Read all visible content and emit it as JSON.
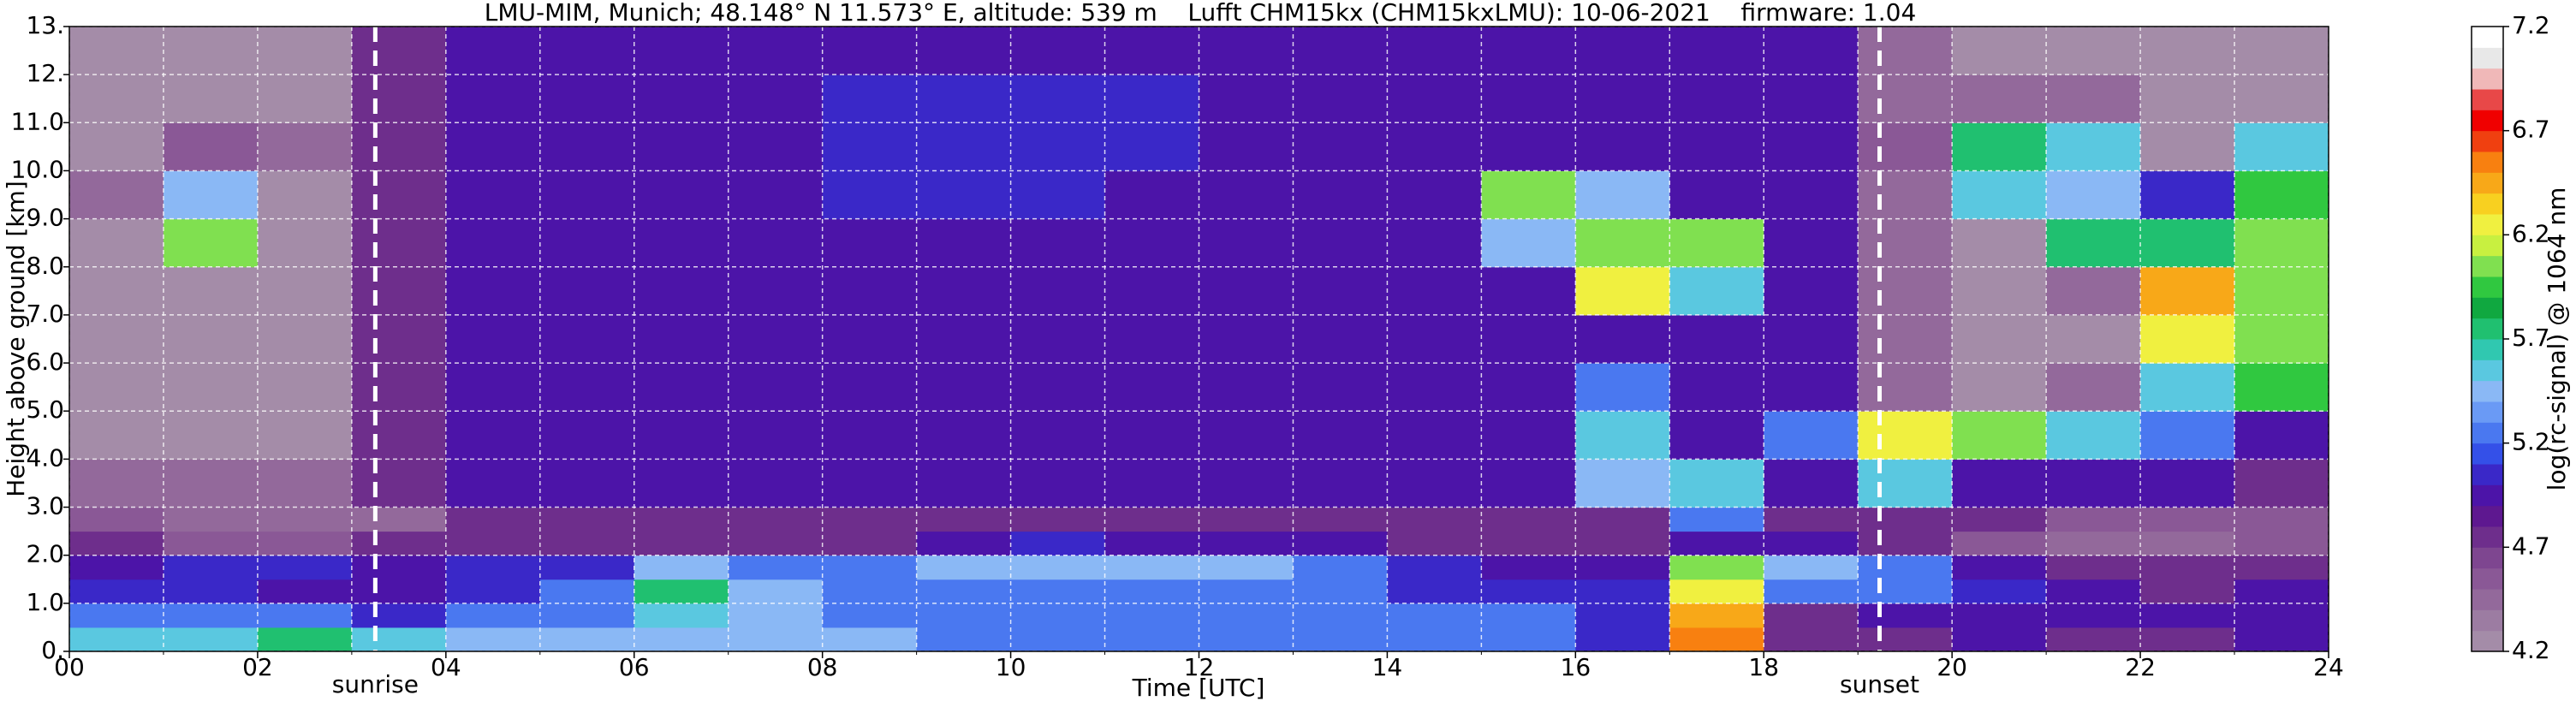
{
  "chart_data": {
    "type": "heatmap",
    "title": "LMU-MIM, Munich; 48.148° N 11.573° E, altitude: 539 m    Lufft CHM15kx (CHM15kxLMU): 10-06-2021    firmware: 1.04",
    "xlabel": "Time [UTC]",
    "ylabel": "Height above ground [km]",
    "colorbar_label": "log(rc-signal) @ 1064 nm",
    "xlim": [
      0,
      24
    ],
    "ylim": [
      0,
      13
    ],
    "xticks": [
      {
        "value": 0,
        "label": "00"
      },
      {
        "value": 2,
        "label": "02"
      },
      {
        "value": 4,
        "label": "04"
      },
      {
        "value": 6,
        "label": "06"
      },
      {
        "value": 8,
        "label": "08"
      },
      {
        "value": 10,
        "label": "10"
      },
      {
        "value": 12,
        "label": "12"
      },
      {
        "value": 14,
        "label": "14"
      },
      {
        "value": 16,
        "label": "16"
      },
      {
        "value": 18,
        "label": "18"
      },
      {
        "value": 20,
        "label": "20"
      },
      {
        "value": 22,
        "label": "22"
      },
      {
        "value": 24,
        "label": "24"
      }
    ],
    "xminorticks": [
      1,
      3,
      5,
      7,
      9,
      11,
      13,
      15,
      17,
      19,
      21,
      23
    ],
    "yticks": [
      {
        "value": 0,
        "label": "0."
      },
      {
        "value": 1,
        "label": "1.0"
      },
      {
        "value": 2,
        "label": "2.0"
      },
      {
        "value": 3,
        "label": "3.0"
      },
      {
        "value": 4,
        "label": "4.0"
      },
      {
        "value": 5,
        "label": "5.0"
      },
      {
        "value": 6,
        "label": "6.0"
      },
      {
        "value": 7,
        "label": "7.0"
      },
      {
        "value": 8,
        "label": "8.0"
      },
      {
        "value": 9,
        "label": "9.0"
      },
      {
        "value": 10,
        "label": "10.0"
      },
      {
        "value": 11,
        "label": "11.0"
      },
      {
        "value": 12,
        "label": "12."
      },
      {
        "value": 13,
        "label": "13."
      }
    ],
    "grid": true,
    "annotations": [
      {
        "text": "sunrise",
        "x": 3.25
      },
      {
        "text": "sunset",
        "x": 19.23
      }
    ],
    "clim": [
      4.2,
      7.2
    ],
    "cticks": [
      4.2,
      4.7,
      5.2,
      5.7,
      6.2,
      6.7,
      7.2
    ],
    "colors": [
      "#a48ca8",
      "#9c7ca2",
      "#93699b",
      "#8a5896",
      "#7e4690",
      "#6e2e8c",
      "#5e1890",
      "#4c14a8",
      "#3a28c8",
      "#3450e8",
      "#4a78f0",
      "#6a9af5",
      "#8ab8f5",
      "#5ac8e0",
      "#30c8b0",
      "#20c070",
      "#10a840",
      "#30c840",
      "#80e050",
      "#c8f040",
      "#f0f040",
      "#f8d020",
      "#f8a818",
      "#f88010",
      "#f04010",
      "#f00000",
      "#e84848",
      "#f0b8b8",
      "#e8e8e8",
      "#ffffff"
    ],
    "x_bins": [
      0,
      1,
      2,
      3,
      4,
      5,
      6,
      7,
      8,
      9,
      10,
      11,
      12,
      13,
      14,
      15,
      16,
      17,
      18,
      19,
      20,
      21,
      22,
      23,
      24
    ],
    "y_bins": [
      0,
      0.5,
      1,
      1.5,
      2,
      2.5,
      3,
      4,
      5,
      6,
      7,
      8,
      9,
      10,
      11,
      12,
      13
    ],
    "z": [
      [
        5.6,
        5.6,
        5.7,
        5.6,
        5.5,
        5.4,
        5.5,
        5.5,
        5.4,
        5.2,
        5.2,
        5.2,
        5.2,
        5.2,
        5.2,
        5.2,
        5.1,
        6.5,
        4.8,
        4.8,
        4.9,
        4.8,
        4.8,
        4.9
      ],
      [
        5.3,
        5.3,
        5.2,
        5.1,
        5.2,
        5.3,
        5.6,
        5.4,
        5.3,
        5.2,
        5.2,
        5.2,
        5.2,
        5.2,
        5.2,
        5.2,
        5.1,
        6.4,
        4.8,
        4.9,
        5.0,
        4.9,
        4.9,
        5.0
      ],
      [
        5.1,
        5.1,
        5.0,
        5.0,
        5.1,
        5.2,
        5.7,
        5.5,
        5.3,
        5.2,
        5.2,
        5.2,
        5.2,
        5.2,
        5.1,
        5.1,
        5.1,
        6.2,
        5.2,
        5.2,
        5.1,
        4.9,
        4.8,
        4.9
      ],
      [
        5.0,
        5.1,
        5.1,
        5.0,
        5.1,
        5.1,
        5.5,
        5.3,
        5.2,
        5.4,
        5.5,
        5.5,
        5.5,
        5.3,
        5.1,
        5.0,
        5.0,
        6.0,
        5.4,
        5.2,
        5.0,
        4.8,
        4.7,
        4.8
      ],
      [
        4.7,
        4.6,
        4.6,
        4.7,
        4.8,
        4.8,
        4.8,
        4.8,
        4.8,
        5.0,
        5.1,
        5.0,
        5.0,
        4.9,
        4.8,
        4.8,
        4.8,
        5.0,
        4.9,
        4.8,
        4.6,
        4.5,
        4.5,
        4.6
      ],
      [
        4.6,
        4.5,
        4.5,
        4.5,
        4.8,
        4.8,
        4.8,
        4.8,
        4.8,
        4.8,
        4.8,
        4.8,
        4.8,
        4.8,
        4.8,
        4.8,
        4.8,
        5.2,
        4.8,
        4.7,
        4.7,
        4.6,
        4.6,
        4.6
      ],
      [
        4.4,
        4.4,
        4.4,
        4.7,
        4.9,
        4.9,
        4.9,
        4.9,
        4.9,
        4.9,
        4.9,
        4.9,
        4.9,
        4.9,
        4.9,
        4.9,
        5.4,
        5.6,
        4.9,
        5.6,
        5.0,
        4.9,
        4.9,
        4.8
      ],
      [
        4.3,
        4.3,
        4.3,
        4.8,
        4.9,
        4.9,
        4.9,
        4.9,
        4.9,
        4.9,
        4.9,
        4.9,
        4.9,
        4.9,
        4.9,
        4.9,
        5.6,
        4.9,
        5.3,
        6.2,
        6.1,
        5.6,
        5.3,
        5.0
      ],
      [
        4.3,
        4.3,
        4.3,
        4.8,
        4.9,
        4.9,
        4.9,
        4.9,
        4.9,
        4.9,
        4.9,
        4.9,
        4.9,
        4.9,
        4.9,
        4.9,
        5.2,
        4.9,
        4.9,
        4.5,
        4.3,
        4.4,
        5.6,
        5.9
      ],
      [
        4.3,
        4.3,
        4.3,
        4.8,
        5.0,
        4.9,
        4.9,
        4.9,
        4.9,
        5.0,
        4.9,
        4.9,
        4.9,
        4.9,
        4.9,
        4.9,
        4.9,
        4.9,
        4.9,
        4.4,
        4.3,
        4.3,
        6.3,
        6.0
      ],
      [
        4.3,
        4.3,
        4.3,
        4.8,
        4.9,
        4.9,
        4.9,
        4.9,
        5.0,
        5.0,
        5.0,
        5.0,
        4.9,
        4.9,
        4.9,
        4.9,
        6.3,
        5.6,
        4.9,
        4.4,
        4.3,
        4.4,
        6.4,
        6.1
      ],
      [
        4.3,
        6.0,
        4.3,
        4.8,
        4.9,
        4.9,
        4.9,
        4.9,
        5.0,
        5.0,
        5.0,
        5.0,
        5.0,
        4.9,
        4.9,
        5.5,
        6.0,
        6.1,
        4.9,
        4.4,
        4.3,
        5.7,
        5.8,
        6.1
      ],
      [
        4.4,
        5.5,
        4.3,
        4.8,
        4.9,
        4.9,
        4.9,
        4.9,
        5.1,
        5.1,
        5.1,
        5.0,
        5.0,
        5.0,
        5.0,
        6.0,
        5.4,
        4.9,
        4.9,
        4.4,
        5.6,
        5.5,
        5.1,
        5.9
      ],
      [
        4.3,
        4.6,
        4.5,
        4.8,
        4.9,
        4.9,
        4.9,
        5.0,
        5.1,
        5.1,
        5.1,
        5.1,
        5.0,
        5.0,
        4.9,
        4.9,
        4.9,
        4.9,
        4.9,
        4.6,
        5.8,
        5.6,
        4.3,
        5.6
      ],
      [
        4.3,
        4.3,
        4.3,
        4.8,
        4.9,
        4.9,
        5.0,
        5.0,
        5.1,
        5.1,
        5.1,
        5.1,
        5.0,
        5.0,
        4.9,
        4.9,
        4.9,
        4.9,
        4.9,
        4.4,
        4.5,
        4.4,
        4.3,
        4.3
      ],
      [
        4.3,
        4.3,
        4.3,
        4.8,
        4.9,
        4.9,
        5.0,
        5.0,
        5.0,
        5.0,
        5.0,
        5.0,
        5.0,
        4.9,
        4.9,
        4.9,
        4.9,
        4.9,
        4.9,
        4.4,
        4.3,
        4.3,
        4.3,
        4.3
      ]
    ]
  }
}
